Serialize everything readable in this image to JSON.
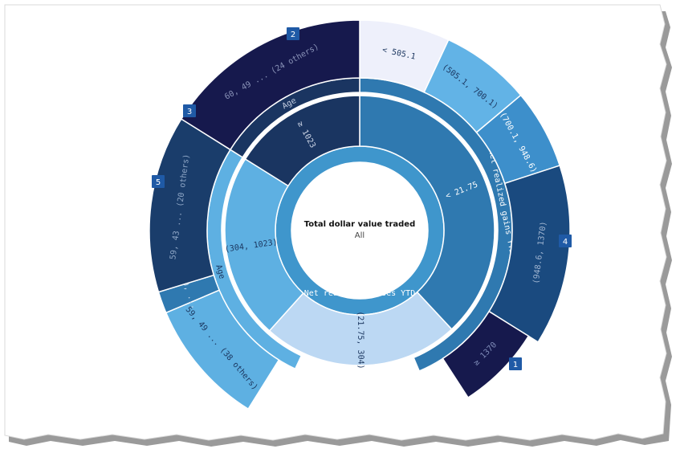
{
  "chart_data": {
    "type": "sunburst",
    "center": {
      "title": "Total dollar value traded",
      "subtitle": "All"
    },
    "inner_ring": {
      "segments": [
        {
          "label": "Net realized losses YTD",
          "value": 100,
          "color": "#3f96cc"
        }
      ]
    },
    "levels": [
      {
        "name": "level-1",
        "segments": [
          {
            "label": "< 21.75",
            "value": 36,
            "color": "#2f79b0",
            "text_color": "#ffffff"
          },
          {
            "label": "(21.75, 304)",
            "value": 17,
            "color": "#bcd8f3",
            "text_color": "#1b365f"
          },
          {
            "label": "(304, 1023)",
            "value": 17,
            "color": "#5eb0e2",
            "text_color": "#1b365f"
          },
          {
            "label": "≥ 1023",
            "value": 22,
            "color": "#1a3561",
            "text_color": "#d0d8e8"
          }
        ]
      },
      {
        "name": "level-2",
        "segments": [
          {
            "label": "Net realized gains YTD",
            "value": 47,
            "color": "#2f79b0",
            "text_color": "#ffffff"
          },
          {
            "label": "Age",
            "value": 19,
            "color": "#5eb0e2",
            "text_color": "#1b365f"
          },
          {
            "label": "Age",
            "value": 22,
            "color": "#1a3561",
            "text_color": "#c5cfe2"
          }
        ]
      },
      {
        "name": "level-3",
        "segments": [
          {
            "label": "< 505.1",
            "value": 9.5,
            "color": "#eef0fb",
            "text_color": "#1b365f"
          },
          {
            "label": "(505.1, 700.1)",
            "value": 9.5,
            "color": "#62b3e6",
            "text_color": "#1b365f"
          },
          {
            "label": "(700.1, 948.6)",
            "value": 9,
            "color": "#3d8fcb",
            "text_color": "#ffffff"
          },
          {
            "label": "(948.6, 1370)",
            "value": 20,
            "color": "#1a4a7f",
            "text_color": "#9fb4d0"
          },
          {
            "label": "≥ 1370",
            "value": 9,
            "color": "#16194d",
            "text_color": "#7f8cb8"
          },
          {
            "label": "59, 49 ... (38 others)",
            "value": 17,
            "color": "#5eb0e2",
            "text_color": "#1b365f"
          },
          {
            "label": "60, ...",
            "value": 3,
            "color": "#2f79b0",
            "text_color": "#c5d5e8"
          },
          {
            "label": "59, 43 ... (20 others)",
            "value": 12,
            "color": "#1a3d6b",
            "text_color": "#8ea6c6"
          },
          {
            "label": "60, 49 ... (24 others)",
            "value": 16,
            "color": "#16194d",
            "text_color": "#8a93b8"
          }
        ]
      }
    ],
    "badges": [
      {
        "number": "1",
        "segment": "≥ 1370"
      },
      {
        "number": "2",
        "segment": "60, 49 ... (24 others)"
      },
      {
        "number": "3",
        "segment": "59, 43 ... (20 others)"
      },
      {
        "number": "4",
        "segment": "(948.6, 1370)"
      },
      {
        "number": "5",
        "segment": "60, ..."
      }
    ]
  }
}
